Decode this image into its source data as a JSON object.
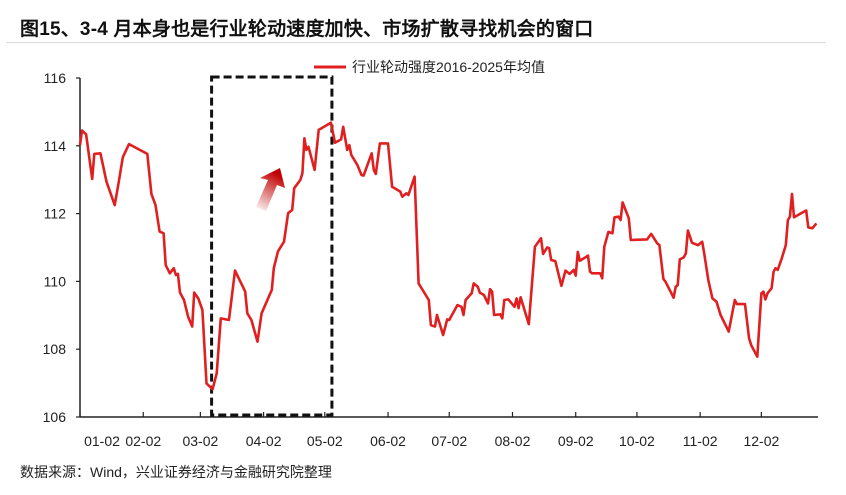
{
  "title": "图15、3-4 月本身也是行业轮动速度加快、市场扩散寻找机会的窗口",
  "source": "数据来源：Wind，兴业证券经济与金融研究院整理",
  "chart_data": {
    "type": "line",
    "title": "图15、3-4 月本身也是行业轮动速度加快、市场扩散寻找机会的窗口",
    "xlabel": "",
    "ylabel": "",
    "ylim": [
      106,
      116
    ],
    "yticks": [
      "106",
      "108",
      "110",
      "112",
      "114",
      "116"
    ],
    "xticks": [
      "01-02",
      "02-02",
      "03-02",
      "04-02",
      "05-02",
      "06-02",
      "07-02",
      "08-02",
      "09-02",
      "10-02",
      "11-02",
      "12-02"
    ],
    "grid": false,
    "legend_position": "top-center",
    "line_color": "#e02020",
    "highlight": {
      "from": "03-08",
      "to": "05-05",
      "style": "dashed-box",
      "arrow": "up"
    },
    "series": [
      {
        "name": "行业轮动强度2016-2025年均值",
        "points": [
          [
            "01-02",
            114.02
          ],
          [
            "01-03",
            114.45
          ],
          [
            "01-05",
            114.34
          ],
          [
            "01-08",
            113.02
          ],
          [
            "01-09",
            113.76
          ],
          [
            "01-12",
            113.78
          ],
          [
            "01-15",
            112.94
          ],
          [
            "01-19",
            112.25
          ],
          [
            "01-21",
            112.94
          ],
          [
            "01-23",
            113.66
          ],
          [
            "01-26",
            114.05
          ],
          [
            "02-04",
            113.76
          ],
          [
            "02-06",
            112.58
          ],
          [
            "02-08",
            112.25
          ],
          [
            "02-10",
            111.47
          ],
          [
            "02-12",
            111.42
          ],
          [
            "02-13",
            110.48
          ],
          [
            "02-15",
            110.24
          ],
          [
            "02-17",
            110.39
          ],
          [
            "02-18",
            110.19
          ],
          [
            "02-19",
            110.22
          ],
          [
            "02-20",
            109.67
          ],
          [
            "02-22",
            109.45
          ],
          [
            "02-24",
            108.96
          ],
          [
            "02-26",
            108.67
          ],
          [
            "02-27",
            109.67
          ],
          [
            "03-01",
            109.5
          ],
          [
            "03-03",
            109.16
          ],
          [
            "03-05",
            106.99
          ],
          [
            "03-08",
            106.82
          ],
          [
            "03-10",
            107.29
          ],
          [
            "03-12",
            108.91
          ],
          [
            "03-16",
            108.86
          ],
          [
            "03-17",
            109.35
          ],
          [
            "03-19",
            110.32
          ],
          [
            "03-24",
            109.7
          ],
          [
            "03-25",
            109.06
          ],
          [
            "03-27",
            108.86
          ],
          [
            "03-30",
            108.22
          ],
          [
            "04-01",
            109.06
          ],
          [
            "04-06",
            109.75
          ],
          [
            "04-07",
            110.39
          ],
          [
            "04-09",
            110.88
          ],
          [
            "04-12",
            111.17
          ],
          [
            "04-14",
            112.01
          ],
          [
            "04-16",
            112.11
          ],
          [
            "04-17",
            112.75
          ],
          [
            "04-20",
            112.99
          ],
          [
            "04-21",
            113.19
          ],
          [
            "04-22",
            114.22
          ],
          [
            "04-23",
            113.88
          ],
          [
            "04-24",
            113.97
          ],
          [
            "04-27",
            113.29
          ],
          [
            "04-29",
            114.47
          ],
          [
            "05-05",
            114.68
          ],
          [
            "05-07",
            114.09
          ],
          [
            "05-10",
            114.19
          ],
          [
            "05-11",
            114.56
          ],
          [
            "05-13",
            113.88
          ],
          [
            "05-14",
            114.02
          ],
          [
            "05-15",
            113.73
          ],
          [
            "05-18",
            113.43
          ],
          [
            "05-20",
            113.14
          ],
          [
            "05-21",
            113.12
          ],
          [
            "05-25",
            113.78
          ],
          [
            "05-26",
            113.29
          ],
          [
            "05-27",
            113.17
          ],
          [
            "05-29",
            114.07
          ],
          [
            "06-02",
            114.07
          ],
          [
            "06-04",
            112.79
          ],
          [
            "06-08",
            112.65
          ],
          [
            "06-09",
            112.5
          ],
          [
            "06-11",
            112.6
          ],
          [
            "06-12",
            112.55
          ],
          [
            "06-15",
            113.09
          ],
          [
            "06-17",
            109.94
          ],
          [
            "06-22",
            109.45
          ],
          [
            "06-23",
            108.71
          ],
          [
            "06-25",
            108.67
          ],
          [
            "06-26",
            109.01
          ],
          [
            "06-29",
            108.42
          ],
          [
            "07-01",
            108.88
          ],
          [
            "07-02",
            108.86
          ],
          [
            "07-06",
            109.3
          ],
          [
            "07-08",
            109.25
          ],
          [
            "07-09",
            109.01
          ],
          [
            "07-10",
            109.45
          ],
          [
            "07-13",
            109.65
          ],
          [
            "07-14",
            109.94
          ],
          [
            "07-16",
            109.84
          ],
          [
            "07-17",
            109.67
          ],
          [
            "07-19",
            109.6
          ],
          [
            "07-21",
            109.35
          ],
          [
            "07-22",
            109.77
          ],
          [
            "07-23",
            109.7
          ],
          [
            "07-24",
            109.01
          ],
          [
            "07-27",
            109.03
          ],
          [
            "07-28",
            108.91
          ],
          [
            "07-29",
            109.45
          ],
          [
            "07-31",
            109.47
          ],
          [
            "08-03",
            109.25
          ],
          [
            "08-04",
            109.5
          ],
          [
            "08-05",
            109.21
          ],
          [
            "08-06",
            109.53
          ],
          [
            "08-10",
            108.74
          ],
          [
            "08-13",
            111.02
          ],
          [
            "08-16",
            111.27
          ],
          [
            "08-17",
            110.81
          ],
          [
            "08-19",
            111.0
          ],
          [
            "08-20",
            110.98
          ],
          [
            "08-21",
            110.63
          ],
          [
            "08-23",
            110.6
          ],
          [
            "08-26",
            109.87
          ],
          [
            "08-28",
            110.32
          ],
          [
            "08-30",
            110.22
          ],
          [
            "09-01",
            110.34
          ],
          [
            "09-02",
            110.17
          ],
          [
            "09-03",
            110.87
          ],
          [
            "09-04",
            110.61
          ],
          [
            "09-06",
            110.68
          ],
          [
            "09-08",
            110.76
          ],
          [
            "09-09",
            110.29
          ],
          [
            "09-10",
            110.24
          ],
          [
            "09-14",
            110.24
          ],
          [
            "09-15",
            110.09
          ],
          [
            "09-16",
            111.02
          ],
          [
            "09-18",
            111.46
          ],
          [
            "09-20",
            111.42
          ],
          [
            "09-21",
            111.89
          ],
          [
            "09-23",
            111.91
          ],
          [
            "09-24",
            111.81
          ],
          [
            "09-25",
            112.33
          ],
          [
            "09-28",
            111.86
          ],
          [
            "09-29",
            111.22
          ],
          [
            "10-07",
            111.24
          ],
          [
            "10-09",
            111.4
          ],
          [
            "10-12",
            111.12
          ],
          [
            "10-13",
            111.07
          ],
          [
            "10-15",
            110.07
          ],
          [
            "10-16",
            109.99
          ],
          [
            "10-20",
            109.52
          ],
          [
            "10-21",
            109.84
          ],
          [
            "10-22",
            109.89
          ],
          [
            "10-23",
            110.65
          ],
          [
            "10-25",
            110.71
          ],
          [
            "10-26",
            110.83
          ],
          [
            "10-27",
            111.5
          ],
          [
            "10-29",
            111.14
          ],
          [
            "11-01",
            111.07
          ],
          [
            "11-03",
            111.17
          ],
          [
            "11-04",
            110.83
          ],
          [
            "11-06",
            110.04
          ],
          [
            "11-08",
            109.5
          ],
          [
            "11-10",
            109.4
          ],
          [
            "11-12",
            109.01
          ],
          [
            "11-16",
            108.52
          ],
          [
            "11-19",
            109.45
          ],
          [
            "11-20",
            109.33
          ],
          [
            "11-24",
            109.33
          ],
          [
            "11-26",
            108.32
          ],
          [
            "11-27",
            108.12
          ],
          [
            "11-30",
            107.78
          ],
          [
            "12-02",
            109.65
          ],
          [
            "12-03",
            109.7
          ],
          [
            "12-04",
            109.47
          ],
          [
            "12-05",
            109.65
          ],
          [
            "12-07",
            109.8
          ],
          [
            "12-08",
            110.29
          ],
          [
            "12-09",
            110.39
          ],
          [
            "12-10",
            110.34
          ],
          [
            "12-12",
            110.68
          ],
          [
            "12-14",
            111.07
          ],
          [
            "12-15",
            111.81
          ],
          [
            "12-16",
            111.91
          ],
          [
            "12-17",
            112.58
          ],
          [
            "12-18",
            111.89
          ],
          [
            "12-20",
            111.96
          ],
          [
            "12-22",
            112.03
          ],
          [
            "12-24",
            112.09
          ],
          [
            "12-25",
            111.59
          ],
          [
            "12-27",
            111.57
          ],
          [
            "12-29",
            111.71
          ]
        ]
      }
    ]
  }
}
